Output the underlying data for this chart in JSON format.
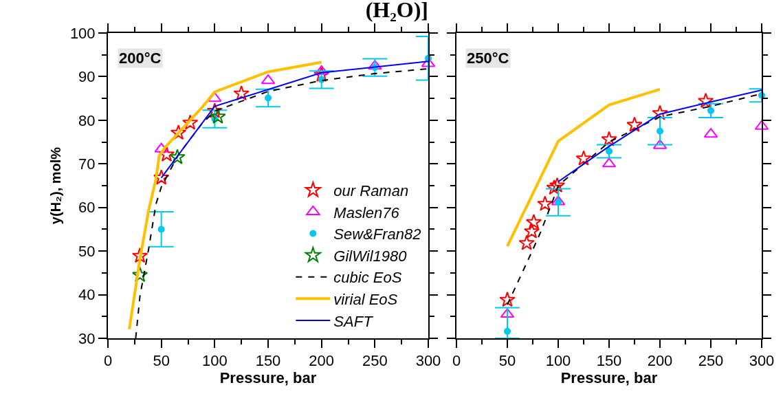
{
  "chart_data": [
    {
      "type": "scatter",
      "title": "(H₂O)]",
      "xlabel": "Pressure, bar",
      "ylabel": "y(H₂), mol%",
      "annotations": [
        "200°C"
      ],
      "xlim": [
        0,
        300
      ],
      "xticks": [
        0,
        50,
        100,
        150,
        200,
        250,
        300
      ],
      "ylim": [
        30,
        100
      ],
      "yticks": [
        30,
        40,
        50,
        60,
        70,
        80,
        90,
        100
      ],
      "grid": false,
      "legend": "bottom right",
      "series": [
        {
          "name": "our Raman",
          "marker": "star",
          "color": "#ff0000",
          "x": [
            30,
            50,
            55,
            66,
            77,
            100,
            125,
            200
          ],
          "values": [
            48.9,
            66.8,
            72.1,
            77.1,
            79.4,
            82.1,
            86.1,
            90.4
          ]
        },
        {
          "name": "Maslen76",
          "marker": "triangle",
          "color": "#ff00ff",
          "x": [
            50,
            100,
            150,
            200,
            250,
            300
          ],
          "values": [
            73.4,
            85.0,
            89.1,
            91.2,
            92.4,
            93.0
          ]
        },
        {
          "name": "Sew&Fran82",
          "marker": "circle",
          "color": "#00c8f0",
          "x": [
            50,
            100,
            150,
            200,
            250,
            300
          ],
          "values": [
            55.0,
            80.3,
            85.1,
            89.3,
            92.1,
            94.2
          ],
          "errors": [
            4,
            2,
            2,
            2,
            2,
            5
          ]
        },
        {
          "name": "GilWil1980",
          "marker": "star",
          "color": "#008000",
          "x": [
            30,
            65,
            103
          ],
          "values": [
            44.5,
            71.5,
            80.8
          ]
        },
        {
          "name": "cubic EoS",
          "type": "line",
          "line_style": "dashed",
          "color": "#000000",
          "x": [
            26,
            30,
            38,
            45,
            50,
            66,
            88,
            100,
            150,
            200,
            250,
            300
          ],
          "values": [
            30,
            39.7,
            50.3,
            60.8,
            64.7,
            72.1,
            79.2,
            82.1,
            86.6,
            89.1,
            90.7,
            91.8
          ]
        },
        {
          "name": "virial EoS",
          "type": "line",
          "line_style": "solid",
          "color": "#ffc000",
          "x": [
            20,
            30,
            38,
            45,
            48,
            54,
            88,
            100,
            150,
            200
          ],
          "values": [
            32.1,
            48.2,
            59.2,
            66.6,
            71.8,
            73.9,
            82.9,
            86.5,
            91.1,
            93.3
          ]
        },
        {
          "name": "SAFT",
          "type": "line",
          "line_style": "solid",
          "color": "#0000ff",
          "x": [
            50,
            100,
            200,
            300
          ],
          "values": [
            66.8,
            83.2,
            90.9,
            93.5
          ]
        }
      ]
    },
    {
      "type": "scatter",
      "xlabel": "Pressure, bar",
      "annotations": [
        "250°C"
      ],
      "xlim": [
        0,
        300
      ],
      "xticks": [
        0,
        50,
        100,
        150,
        200,
        250,
        300
      ],
      "ylim": [
        30,
        100
      ],
      "yticks": [
        30,
        40,
        50,
        60,
        70,
        80,
        90,
        100
      ],
      "grid": false,
      "tick_labels": "x",
      "series": [
        {
          "marker": "star",
          "color": "#ff0000",
          "x": [
            50,
            69,
            74,
            76,
            87,
            96,
            99,
            125,
            150,
            175,
            200,
            245
          ],
          "values": [
            38.8,
            51.8,
            54.5,
            56.6,
            60.8,
            64.5,
            65.0,
            71.2,
            75.6,
            78.9,
            81.6,
            84.4
          ]
        },
        {
          "marker": "triangle",
          "color": "#ff00ff",
          "x": [
            50,
            100,
            150,
            200,
            250,
            300
          ],
          "values": [
            35.5,
            61.3,
            70.0,
            74.2,
            76.8,
            78.6
          ]
        },
        {
          "marker": "circle",
          "color": "#00c8f0",
          "x": [
            50,
            100,
            150,
            200,
            250,
            300
          ],
          "values": [
            31.6,
            61.2,
            72.9,
            77.5,
            82.2,
            85.7
          ],
          "errors": [
            [
              30,
              37.0
            ],
            3.1,
            1.5,
            3.1,
            1.6,
            1.5
          ]
        },
        {
          "type": "line",
          "line_style": "dashed",
          "color": "#000000",
          "x": [
            50,
            75,
            83,
            96,
            100,
            125,
            150,
            200,
            250,
            300
          ],
          "values": [
            37.7,
            50.3,
            54.5,
            62.4,
            65.0,
            70.0,
            75.0,
            80.8,
            83.2,
            86.1
          ]
        },
        {
          "type": "line",
          "line_style": "solid",
          "color": "#ffc000",
          "x": [
            50,
            100,
            150,
            200
          ],
          "values": [
            51.1,
            75.2,
            83.5,
            87.1
          ]
        },
        {
          "type": "line",
          "line_style": "solid",
          "color": "#0000ff",
          "x": [
            100,
            150,
            200,
            250,
            300
          ],
          "values": [
            65.9,
            74.0,
            81.4,
            84.2,
            86.9
          ]
        }
      ]
    }
  ]
}
